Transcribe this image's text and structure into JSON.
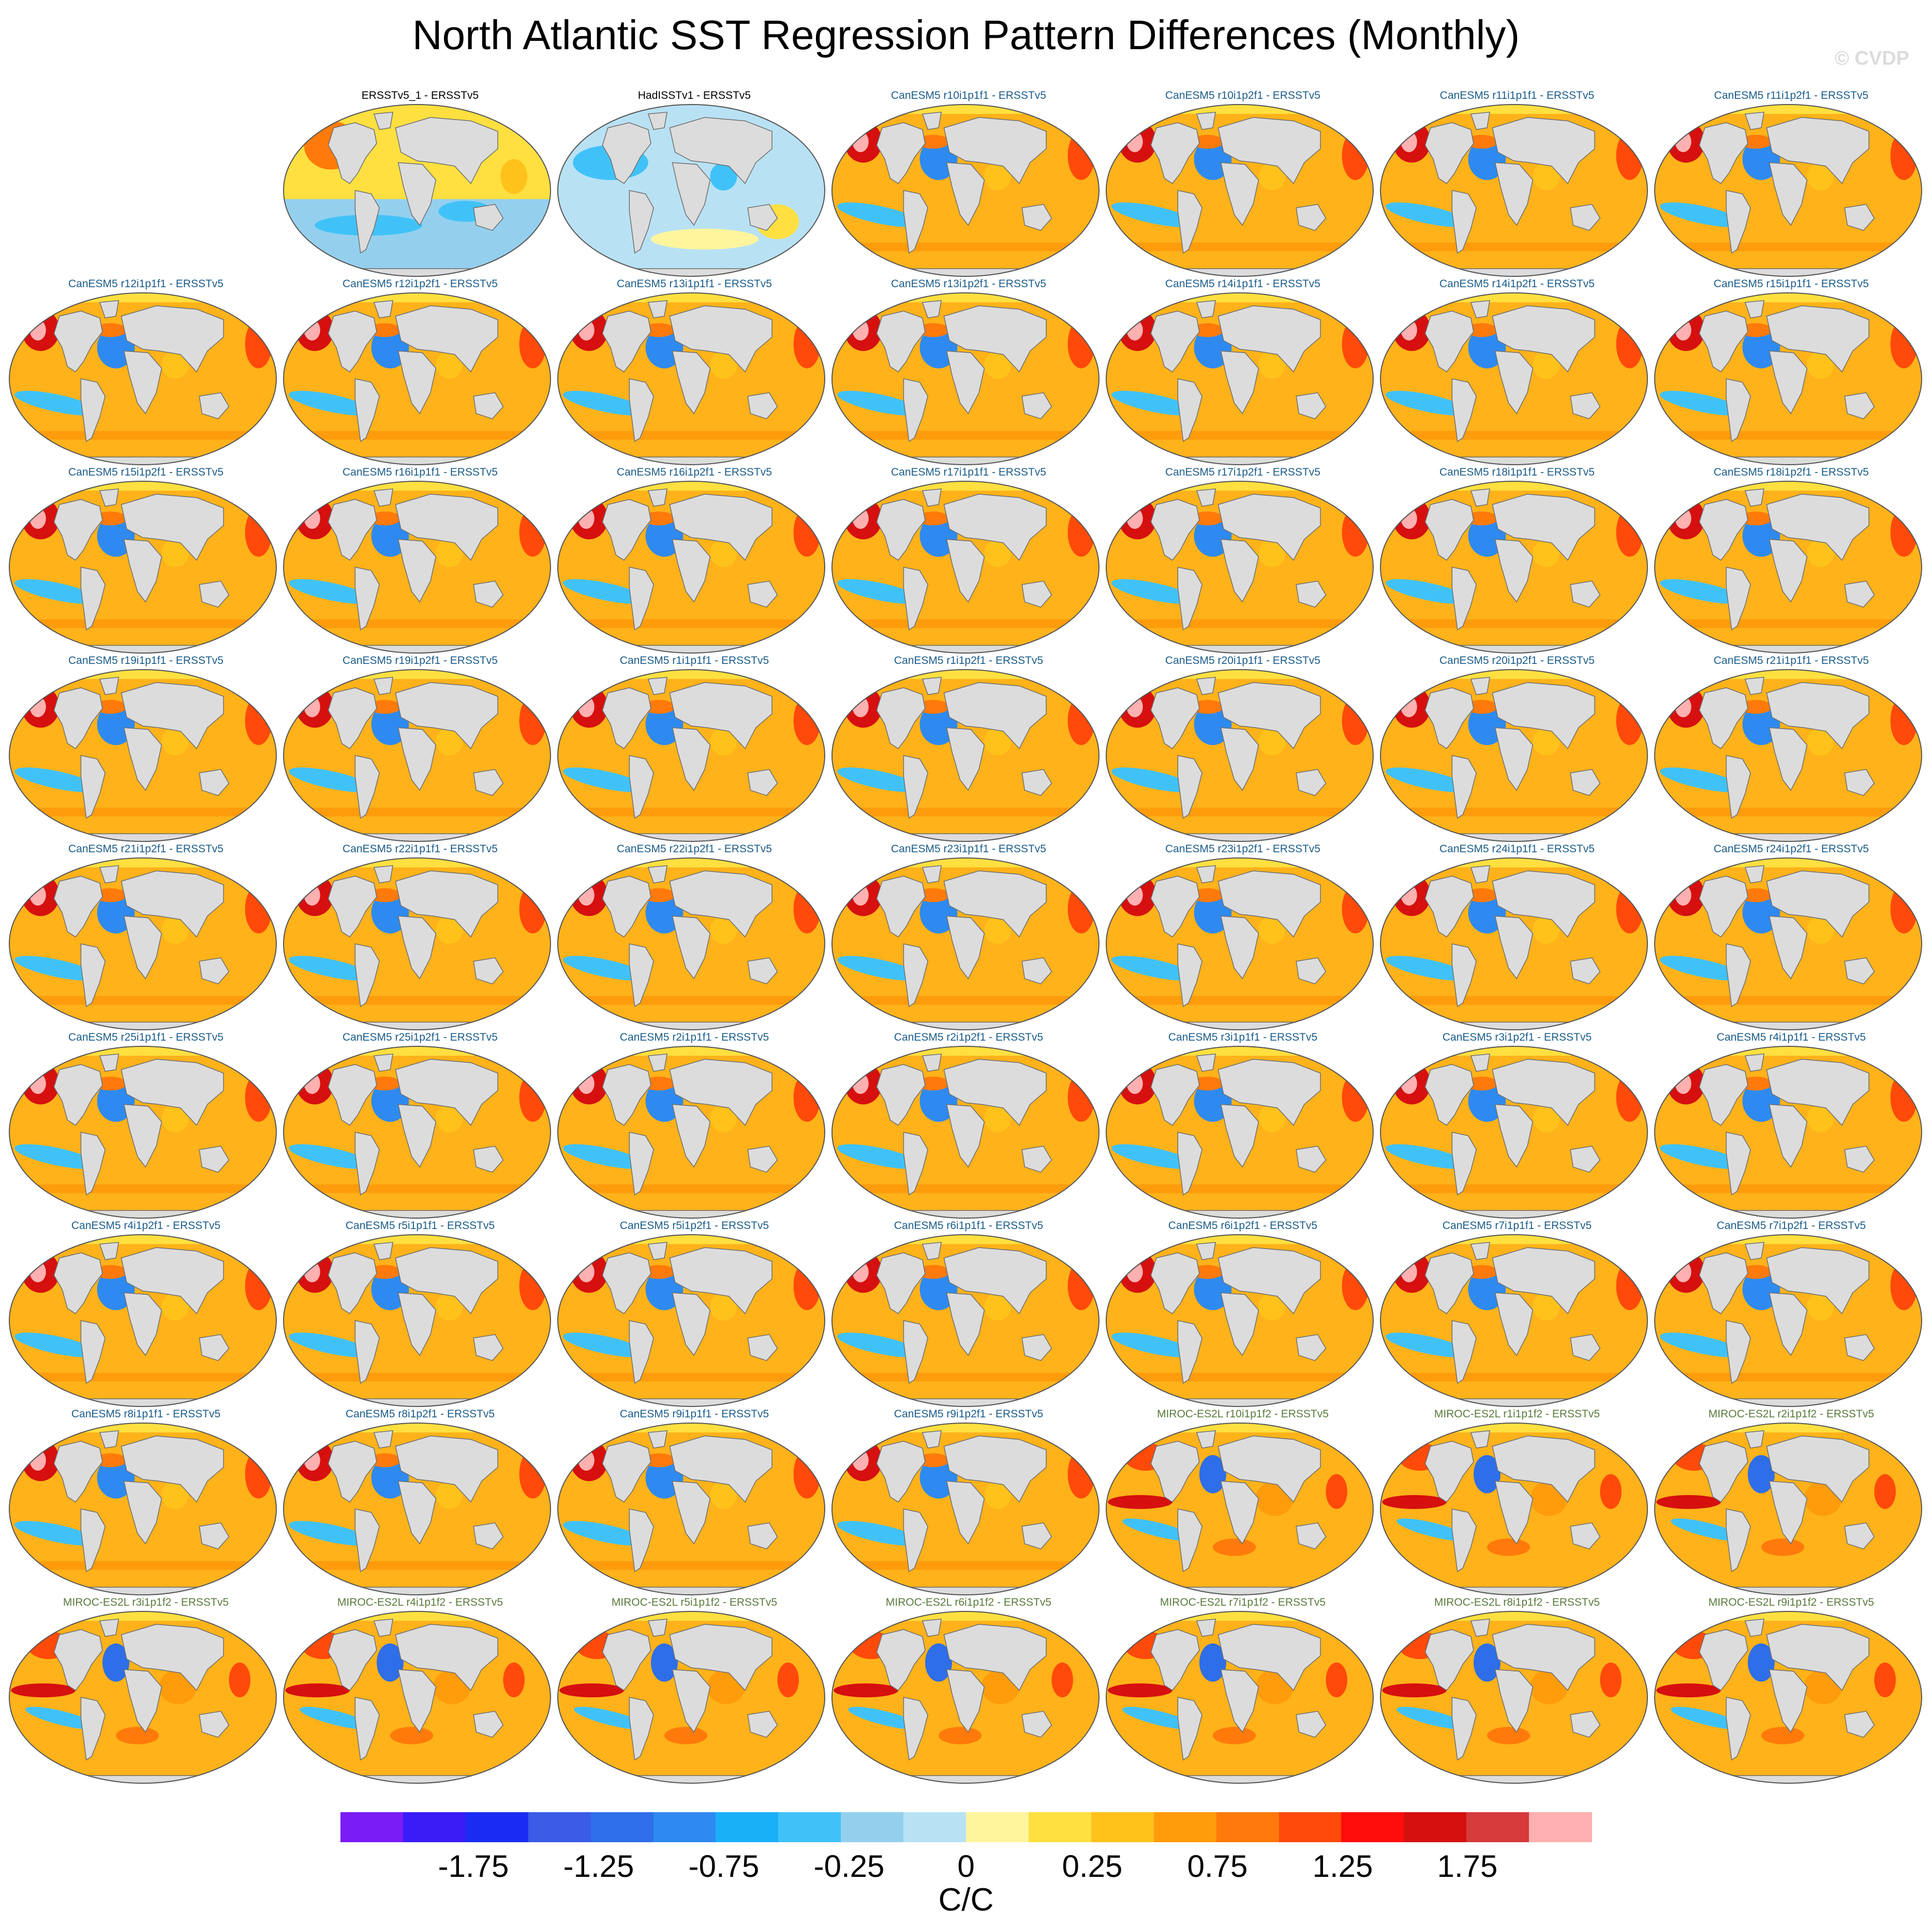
{
  "title": "North Atlantic SST Regression Pattern Differences (Monthly)",
  "watermark": "© CVDP",
  "units": "C/C",
  "colorbar": {
    "colors": [
      "#7a1cf5",
      "#3a1cf7",
      "#1a2cf2",
      "#3a5ce6",
      "#2e6ee8",
      "#2e8af0",
      "#1ab0f8",
      "#40c2f8",
      "#94d0ee",
      "#b8e2f4",
      "#fff59d",
      "#ffe040",
      "#ffc21a",
      "#ff9c0c",
      "#ff7a0a",
      "#ff4a0a",
      "#ff0d0d",
      "#d60f0f",
      "#d63a3a",
      "#ffb0b0"
    ],
    "tick_labels": [
      "-1.75",
      "-1.25",
      "-0.75",
      "-0.25",
      "0",
      "0.25",
      "0.75",
      "1.25",
      "1.75"
    ]
  },
  "panel_colors": {
    "obs": "#000000",
    "canesm": "#1b5c8a",
    "miroc": "#5a7a3c"
  },
  "panels": [
    {
      "label": "ERSSTv5_1 - ERSSTv5",
      "group": "obs",
      "style": "obs1"
    },
    {
      "label": "HadISSTv1 - ERSSTv5",
      "group": "obs",
      "style": "obs2"
    },
    {
      "label": "CanESM5 r10i1p1f1 - ERSSTv5",
      "group": "canesm"
    },
    {
      "label": "CanESM5 r10i1p2f1 - ERSSTv5",
      "group": "canesm"
    },
    {
      "label": "CanESM5 r11i1p1f1 - ERSSTv5",
      "group": "canesm"
    },
    {
      "label": "CanESM5 r11i1p2f1 - ERSSTv5",
      "group": "canesm"
    },
    {
      "label": "CanESM5 r12i1p1f1 - ERSSTv5",
      "group": "canesm"
    },
    {
      "label": "CanESM5 r12i1p2f1 - ERSSTv5",
      "group": "canesm"
    },
    {
      "label": "CanESM5 r13i1p1f1 - ERSSTv5",
      "group": "canesm"
    },
    {
      "label": "CanESM5 r13i1p2f1 - ERSSTv5",
      "group": "canesm"
    },
    {
      "label": "CanESM5 r14i1p1f1 - ERSSTv5",
      "group": "canesm"
    },
    {
      "label": "CanESM5 r14i1p2f1 - ERSSTv5",
      "group": "canesm"
    },
    {
      "label": "CanESM5 r15i1p1f1 - ERSSTv5",
      "group": "canesm"
    },
    {
      "label": "CanESM5 r15i1p2f1 - ERSSTv5",
      "group": "canesm"
    },
    {
      "label": "CanESM5 r16i1p1f1 - ERSSTv5",
      "group": "canesm"
    },
    {
      "label": "CanESM5 r16i1p2f1 - ERSSTv5",
      "group": "canesm"
    },
    {
      "label": "CanESM5 r17i1p1f1 - ERSSTv5",
      "group": "canesm"
    },
    {
      "label": "CanESM5 r17i1p2f1 - ERSSTv5",
      "group": "canesm"
    },
    {
      "label": "CanESM5 r18i1p1f1 - ERSSTv5",
      "group": "canesm"
    },
    {
      "label": "CanESM5 r18i1p2f1 - ERSSTv5",
      "group": "canesm"
    },
    {
      "label": "CanESM5 r19i1p1f1 - ERSSTv5",
      "group": "canesm"
    },
    {
      "label": "CanESM5 r19i1p2f1 - ERSSTv5",
      "group": "canesm"
    },
    {
      "label": "CanESM5 r1i1p1f1 - ERSSTv5",
      "group": "canesm"
    },
    {
      "label": "CanESM5 r1i1p2f1 - ERSSTv5",
      "group": "canesm"
    },
    {
      "label": "CanESM5 r20i1p1f1 - ERSSTv5",
      "group": "canesm"
    },
    {
      "label": "CanESM5 r20i1p2f1 - ERSSTv5",
      "group": "canesm"
    },
    {
      "label": "CanESM5 r21i1p1f1 - ERSSTv5",
      "group": "canesm"
    },
    {
      "label": "CanESM5 r21i1p2f1 - ERSSTv5",
      "group": "canesm"
    },
    {
      "label": "CanESM5 r22i1p1f1 - ERSSTv5",
      "group": "canesm"
    },
    {
      "label": "CanESM5 r22i1p2f1 - ERSSTv5",
      "group": "canesm"
    },
    {
      "label": "CanESM5 r23i1p1f1 - ERSSTv5",
      "group": "canesm"
    },
    {
      "label": "CanESM5 r23i1p2f1 - ERSSTv5",
      "group": "canesm"
    },
    {
      "label": "CanESM5 r24i1p1f1 - ERSSTv5",
      "group": "canesm"
    },
    {
      "label": "CanESM5 r24i1p2f1 - ERSSTv5",
      "group": "canesm"
    },
    {
      "label": "CanESM5 r25i1p1f1 - ERSSTv5",
      "group": "canesm"
    },
    {
      "label": "CanESM5 r25i1p2f1 - ERSSTv5",
      "group": "canesm"
    },
    {
      "label": "CanESM5 r2i1p1f1 - ERSSTv5",
      "group": "canesm"
    },
    {
      "label": "CanESM5 r2i1p2f1 - ERSSTv5",
      "group": "canesm"
    },
    {
      "label": "CanESM5 r3i1p1f1 - ERSSTv5",
      "group": "canesm"
    },
    {
      "label": "CanESM5 r3i1p2f1 - ERSSTv5",
      "group": "canesm"
    },
    {
      "label": "CanESM5 r4i1p1f1 - ERSSTv5",
      "group": "canesm"
    },
    {
      "label": "CanESM5 r4i1p2f1 - ERSSTv5",
      "group": "canesm"
    },
    {
      "label": "CanESM5 r5i1p1f1 - ERSSTv5",
      "group": "canesm"
    },
    {
      "label": "CanESM5 r5i1p2f1 - ERSSTv5",
      "group": "canesm"
    },
    {
      "label": "CanESM5 r6i1p1f1 - ERSSTv5",
      "group": "canesm"
    },
    {
      "label": "CanESM5 r6i1p2f1 - ERSSTv5",
      "group": "canesm"
    },
    {
      "label": "CanESM5 r7i1p1f1 - ERSSTv5",
      "group": "canesm"
    },
    {
      "label": "CanESM5 r7i1p2f1 - ERSSTv5",
      "group": "canesm"
    },
    {
      "label": "CanESM5 r8i1p1f1 - ERSSTv5",
      "group": "canesm"
    },
    {
      "label": "CanESM5 r8i1p2f1 - ERSSTv5",
      "group": "canesm"
    },
    {
      "label": "CanESM5 r9i1p1f1 - ERSSTv5",
      "group": "canesm"
    },
    {
      "label": "CanESM5 r9i1p2f1 - ERSSTv5",
      "group": "canesm"
    },
    {
      "label": "MIROC-ES2L r10i1p1f2 - ERSSTv5",
      "group": "miroc"
    },
    {
      "label": "MIROC-ES2L r1i1p1f2 - ERSSTv5",
      "group": "miroc"
    },
    {
      "label": "MIROC-ES2L r2i1p1f2 - ERSSTv5",
      "group": "miroc"
    },
    {
      "label": "MIROC-ES2L r3i1p1f2 - ERSSTv5",
      "group": "miroc"
    },
    {
      "label": "MIROC-ES2L r4i1p1f2 - ERSSTv5",
      "group": "miroc"
    },
    {
      "label": "MIROC-ES2L r5i1p1f2 - ERSSTv5",
      "group": "miroc"
    },
    {
      "label": "MIROC-ES2L r6i1p1f2 - ERSSTv5",
      "group": "miroc"
    },
    {
      "label": "MIROC-ES2L r7i1p1f2 - ERSSTv5",
      "group": "miroc"
    },
    {
      "label": "MIROC-ES2L r8i1p1f2 - ERSSTv5",
      "group": "miroc"
    },
    {
      "label": "MIROC-ES2L r9i1p1f2 - ERSSTv5",
      "group": "miroc"
    }
  ]
}
